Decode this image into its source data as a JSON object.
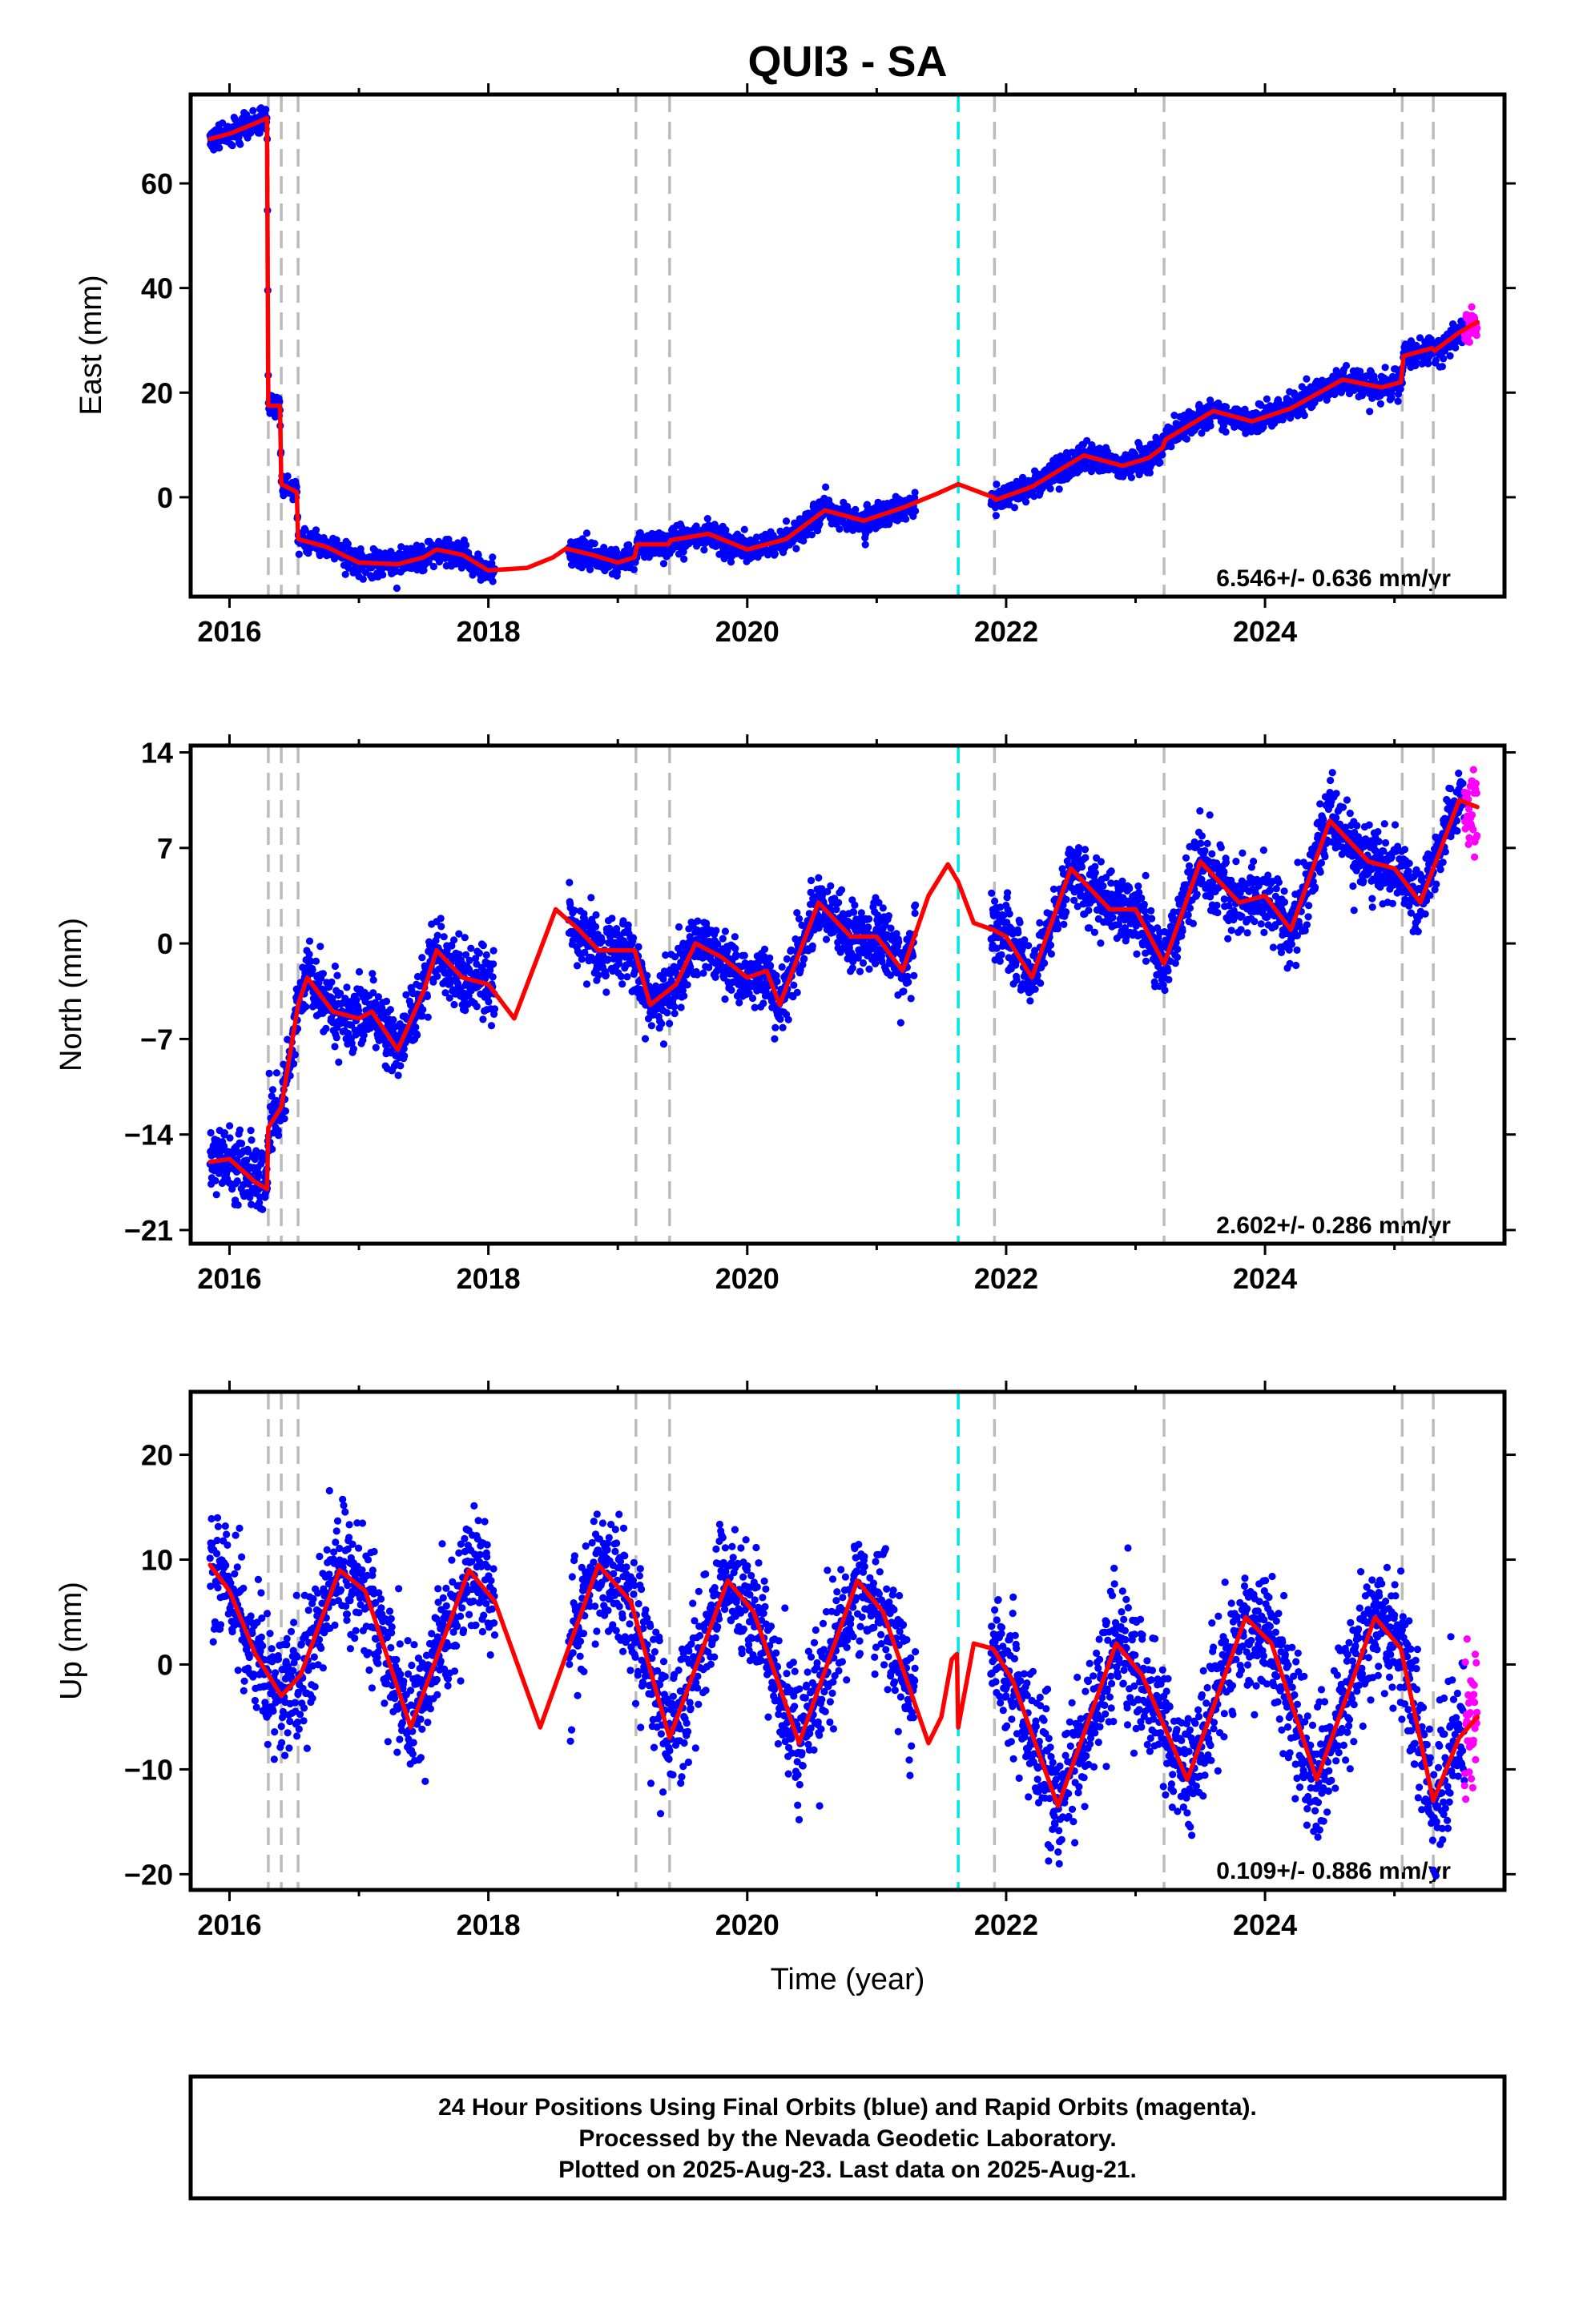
{
  "title": "QUI3 - SA",
  "xlabel": "Time (year)",
  "colors": {
    "final_orbits": "#0000ff",
    "rapid_orbits": "#ff00ff",
    "model": "#ff0000",
    "event_lines": "#bbbbbb",
    "highlight_line": "#00e5e5"
  },
  "footer": {
    "line1": "24 Hour Positions Using Final Orbits (blue) and Rapid Orbits (magenta).",
    "line2": "Processed by the Nevada Geodetic Laboratory.",
    "line3": "Plotted on 2025-Aug-23. Last data on 2025-Aug-21."
  },
  "chart_data": [
    {
      "type": "scatter",
      "component": "East",
      "ylabel": "East (mm)",
      "rate_label": "6.546+/- 0.636 mm/yr",
      "xlim": [
        2015.7,
        2025.85
      ],
      "ylim": [
        -19,
        77
      ],
      "xticks": [
        2016,
        2018,
        2020,
        2022,
        2024
      ],
      "yticks": [
        0,
        20,
        40,
        60
      ],
      "grid": false,
      "data_start": 2015.85,
      "final_end": 2025.54,
      "rapid_end": 2025.64,
      "gaps": [
        [
          2018.05,
          2018.62
        ],
        [
          2021.3,
          2021.88
        ]
      ],
      "event_lines": [
        2016.3,
        2016.4,
        2016.53,
        2019.14,
        2019.4,
        2021.91,
        2023.22,
        2025.06,
        2025.3
      ],
      "highlight_line": 2021.63,
      "model_points": [
        [
          2015.85,
          68.5
        ],
        [
          2016.0,
          69.5
        ],
        [
          2016.2,
          71.5
        ],
        [
          2016.29,
          72.5
        ],
        [
          2016.3,
          17.5
        ],
        [
          2016.39,
          17.5
        ],
        [
          2016.4,
          2.5
        ],
        [
          2016.52,
          1.0
        ],
        [
          2016.53,
          -8.0
        ],
        [
          2016.75,
          -9.5
        ],
        [
          2017.0,
          -12.5
        ],
        [
          2017.3,
          -12.8
        ],
        [
          2017.5,
          -11.5
        ],
        [
          2017.6,
          -10.0
        ],
        [
          2017.8,
          -11.0
        ],
        [
          2018.0,
          -14.0
        ],
        [
          2018.3,
          -13.5
        ],
        [
          2018.5,
          -11.5
        ],
        [
          2018.6,
          -9.8
        ],
        [
          2018.8,
          -11.0
        ],
        [
          2019.0,
          -12.5
        ],
        [
          2019.13,
          -11.5
        ],
        [
          2019.15,
          -9.0
        ],
        [
          2019.39,
          -9.0
        ],
        [
          2019.41,
          -8.2
        ],
        [
          2019.7,
          -7.0
        ],
        [
          2020.0,
          -10.0
        ],
        [
          2020.3,
          -8.0
        ],
        [
          2020.6,
          -2.5
        ],
        [
          2020.9,
          -4.5
        ],
        [
          2021.2,
          -2.0
        ],
        [
          2021.45,
          0.5
        ],
        [
          2021.63,
          2.5
        ],
        [
          2021.9,
          0.0
        ],
        [
          2021.92,
          -0.5
        ],
        [
          2022.2,
          2.0
        ],
        [
          2022.6,
          8.0
        ],
        [
          2022.9,
          6.0
        ],
        [
          2023.1,
          7.5
        ],
        [
          2023.21,
          9.5
        ],
        [
          2023.23,
          11.0
        ],
        [
          2023.6,
          16.5
        ],
        [
          2023.9,
          14.5
        ],
        [
          2024.2,
          17.0
        ],
        [
          2024.6,
          22.5
        ],
        [
          2024.9,
          21.0
        ],
        [
          2025.05,
          22.0
        ],
        [
          2025.07,
          27.0
        ],
        [
          2025.29,
          28.5
        ],
        [
          2025.31,
          28.0
        ],
        [
          2025.5,
          31.5
        ],
        [
          2025.64,
          33.5
        ]
      ]
    },
    {
      "type": "scatter",
      "component": "North",
      "ylabel": "North (mm)",
      "rate_label": "2.602+/- 0.286 mm/yr",
      "xlim": [
        2015.7,
        2025.85
      ],
      "ylim": [
        -22,
        14.5
      ],
      "xticks": [
        2016,
        2018,
        2020,
        2022,
        2024
      ],
      "yticks": [
        -21,
        -14,
        -7,
        0,
        7,
        14
      ],
      "ytick_labels": [
        "−21",
        "−14",
        "−7",
        "0",
        "7",
        "14"
      ],
      "grid": false,
      "data_start": 2015.85,
      "final_end": 2025.54,
      "rapid_end": 2025.64,
      "gaps": [
        [
          2018.05,
          2018.62
        ],
        [
          2021.3,
          2021.88
        ]
      ],
      "event_lines": [
        2016.3,
        2016.4,
        2016.53,
        2019.14,
        2019.4,
        2021.91,
        2023.22,
        2025.06,
        2025.3
      ],
      "highlight_line": 2021.63,
      "model_points": [
        [
          2015.85,
          -16.0
        ],
        [
          2016.0,
          -15.8
        ],
        [
          2016.2,
          -17.5
        ],
        [
          2016.29,
          -18.0
        ],
        [
          2016.3,
          -13.5
        ],
        [
          2016.4,
          -12.0
        ],
        [
          2016.53,
          -4.5
        ],
        [
          2016.6,
          -2.5
        ],
        [
          2016.8,
          -5.0
        ],
        [
          2017.0,
          -5.5
        ],
        [
          2017.1,
          -5.0
        ],
        [
          2017.3,
          -7.8
        ],
        [
          2017.5,
          -3.5
        ],
        [
          2017.6,
          -0.5
        ],
        [
          2017.8,
          -2.5
        ],
        [
          2018.0,
          -3.0
        ],
        [
          2018.2,
          -5.5
        ],
        [
          2018.4,
          -0.5
        ],
        [
          2018.52,
          2.5
        ],
        [
          2018.7,
          1.0
        ],
        [
          2018.85,
          -0.5
        ],
        [
          2019.13,
          -0.5
        ],
        [
          2019.25,
          -4.5
        ],
        [
          2019.45,
          -3.0
        ],
        [
          2019.6,
          0.0
        ],
        [
          2019.8,
          -1.0
        ],
        [
          2020.0,
          -2.5
        ],
        [
          2020.15,
          -2.0
        ],
        [
          2020.25,
          -4.5
        ],
        [
          2020.55,
          3.0
        ],
        [
          2020.8,
          0.5
        ],
        [
          2021.0,
          0.5
        ],
        [
          2021.2,
          -2.0
        ],
        [
          2021.4,
          3.5
        ],
        [
          2021.55,
          5.8
        ],
        [
          2021.63,
          4.5
        ],
        [
          2021.75,
          1.5
        ],
        [
          2021.9,
          1.0
        ],
        [
          2022.0,
          0.5
        ],
        [
          2022.2,
          -2.5
        ],
        [
          2022.5,
          5.5
        ],
        [
          2022.8,
          2.5
        ],
        [
          2023.0,
          2.5
        ],
        [
          2023.22,
          -1.5
        ],
        [
          2023.5,
          6.0
        ],
        [
          2023.8,
          3.0
        ],
        [
          2024.0,
          3.5
        ],
        [
          2024.2,
          1.0
        ],
        [
          2024.5,
          9.0
        ],
        [
          2024.8,
          6.0
        ],
        [
          2025.0,
          5.5
        ],
        [
          2025.2,
          3.0
        ],
        [
          2025.5,
          10.5
        ],
        [
          2025.64,
          10.0
        ]
      ]
    },
    {
      "type": "scatter",
      "component": "Up",
      "ylabel": "Up (mm)",
      "rate_label": "0.109+/- 0.886 mm/yr",
      "xlim": [
        2015.7,
        2025.85
      ],
      "ylim": [
        -21.5,
        26
      ],
      "xticks": [
        2016,
        2018,
        2020,
        2022,
        2024
      ],
      "yticks": [
        -20,
        -10,
        0,
        10,
        20
      ],
      "ytick_labels": [
        "−20",
        "−10",
        "0",
        "10",
        "20"
      ],
      "grid": false,
      "data_start": 2015.85,
      "final_end": 2025.54,
      "rapid_end": 2025.64,
      "gaps": [
        [
          2018.05,
          2018.62
        ],
        [
          2021.3,
          2021.88
        ]
      ],
      "event_lines": [
        2016.3,
        2016.4,
        2016.53,
        2019.14,
        2019.4,
        2021.91,
        2023.22,
        2025.06,
        2025.3
      ],
      "highlight_line": 2021.63,
      "model_points": [
        [
          2015.85,
          9.5
        ],
        [
          2016.0,
          7.0
        ],
        [
          2016.2,
          1.0
        ],
        [
          2016.4,
          -3.0
        ],
        [
          2016.55,
          -1.0
        ],
        [
          2016.85,
          9.0
        ],
        [
          2017.05,
          7.0
        ],
        [
          2017.4,
          -6.0
        ],
        [
          2017.85,
          9.0
        ],
        [
          2018.05,
          6.0
        ],
        [
          2018.4,
          -6.0
        ],
        [
          2018.85,
          9.5
        ],
        [
          2019.1,
          6.0
        ],
        [
          2019.4,
          -7.0
        ],
        [
          2019.85,
          8.0
        ],
        [
          2020.05,
          5.0
        ],
        [
          2020.4,
          -7.5
        ],
        [
          2020.85,
          8.0
        ],
        [
          2021.05,
          5.0
        ],
        [
          2021.4,
          -7.5
        ],
        [
          2021.5,
          -5.0
        ],
        [
          2021.58,
          0.5
        ],
        [
          2021.62,
          1.0
        ],
        [
          2021.63,
          -6.0
        ],
        [
          2021.75,
          2.0
        ],
        [
          2021.9,
          1.5
        ],
        [
          2022.05,
          -1.5
        ],
        [
          2022.4,
          -13.5
        ],
        [
          2022.85,
          2.0
        ],
        [
          2023.05,
          -1.0
        ],
        [
          2023.4,
          -11.0
        ],
        [
          2023.85,
          4.5
        ],
        [
          2024.05,
          2.0
        ],
        [
          2024.4,
          -11.0
        ],
        [
          2024.85,
          4.5
        ],
        [
          2025.05,
          1.5
        ],
        [
          2025.3,
          -13.0
        ],
        [
          2025.5,
          -7.0
        ],
        [
          2025.64,
          -5.0
        ]
      ]
    }
  ]
}
